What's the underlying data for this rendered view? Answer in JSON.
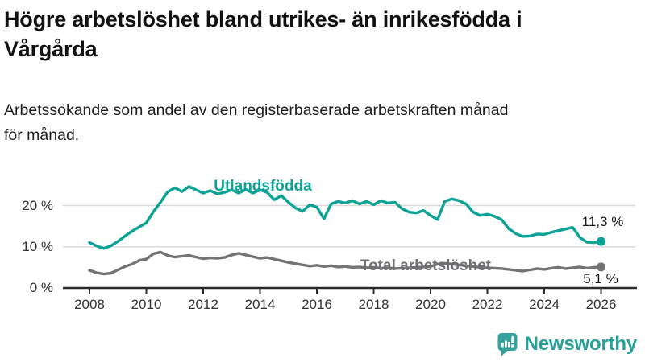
{
  "header": {
    "title_line1": "Högre arbetslöshet bland utrikes- än inrikesfödda i",
    "title_line2": "Vårgårda",
    "subtitle_line1": "Arbetssökande som andel av den registerbaserade arbetskraften månad",
    "subtitle_line2": "för månad."
  },
  "branding": {
    "name": "Newsworthy",
    "icon": "newsworthy-chart-speech-bubble",
    "text_color": "#27a099",
    "icon_color": "#35a39c"
  },
  "chart_data": {
    "type": "line",
    "title": "Arbetssökande som andel av den registerbaserade arbetskraften månad för månad",
    "x_unit": "decimal year (monthly share of labour force, %)",
    "grid": "horizontal",
    "xlim": [
      2008,
      2026.1
    ],
    "ylim": [
      0,
      26.5
    ],
    "xticks": [
      2008,
      2010,
      2012,
      2014,
      2016,
      2018,
      2020,
      2022,
      2024,
      2026
    ],
    "yticks": [
      {
        "value": 0,
        "label": "0 %"
      },
      {
        "value": 10,
        "label": "10 %"
      },
      {
        "value": 20,
        "label": "20 %"
      }
    ],
    "x": [
      2008.0,
      2008.25,
      2008.5,
      2008.75,
      2009.0,
      2009.25,
      2009.5,
      2009.75,
      2010.0,
      2010.25,
      2010.5,
      2010.75,
      2011.0,
      2011.25,
      2011.5,
      2011.75,
      2012.0,
      2012.25,
      2012.5,
      2012.75,
      2013.0,
      2013.25,
      2013.5,
      2013.75,
      2014.0,
      2014.25,
      2014.5,
      2014.75,
      2015.0,
      2015.25,
      2015.5,
      2015.75,
      2016.0,
      2016.25,
      2016.5,
      2016.75,
      2017.0,
      2017.25,
      2017.5,
      2017.75,
      2018.0,
      2018.25,
      2018.5,
      2018.75,
      2019.0,
      2019.25,
      2019.5,
      2019.75,
      2020.0,
      2020.25,
      2020.5,
      2020.75,
      2021.0,
      2021.25,
      2021.5,
      2021.75,
      2022.0,
      2022.25,
      2022.5,
      2022.75,
      2023.0,
      2023.25,
      2023.5,
      2023.75,
      2024.0,
      2024.25,
      2024.5,
      2024.75,
      2025.0,
      2025.25,
      2025.5,
      2025.75,
      2026.0
    ],
    "series": [
      {
        "name": "Utlandsfödda",
        "color": "#0aa396",
        "end_value": 11.3,
        "end_label": "11,3 %",
        "values": [
          11.0,
          10.2,
          9.6,
          10.2,
          11.3,
          12.6,
          13.8,
          14.8,
          15.8,
          18.5,
          20.8,
          23.3,
          24.3,
          23.4,
          24.6,
          23.8,
          23.0,
          23.6,
          22.8,
          23.2,
          23.8,
          23.0,
          23.9,
          23.0,
          23.8,
          23.2,
          21.4,
          22.4,
          20.8,
          19.4,
          18.6,
          20.2,
          19.6,
          16.8,
          20.4,
          21.0,
          20.6,
          21.2,
          20.4,
          21.0,
          20.2,
          21.2,
          20.6,
          20.8,
          19.2,
          18.4,
          18.2,
          18.8,
          17.6,
          16.6,
          21.0,
          21.6,
          21.2,
          20.4,
          18.4,
          17.6,
          17.9,
          17.4,
          16.6,
          14.4,
          13.2,
          12.5,
          12.6,
          13.1,
          13.0,
          13.5,
          13.9,
          14.3,
          14.7,
          12.3,
          11.1,
          11.0,
          11.3
        ]
      },
      {
        "name": "Total arbetslöshet",
        "color": "#737373",
        "end_value": 5.1,
        "end_label": "5,1 %",
        "values": [
          4.3,
          3.7,
          3.4,
          3.6,
          4.4,
          5.2,
          5.8,
          6.7,
          7.0,
          8.3,
          8.7,
          7.9,
          7.5,
          7.7,
          7.9,
          7.5,
          7.1,
          7.3,
          7.2,
          7.4,
          8.0,
          8.4,
          8.0,
          7.6,
          7.2,
          7.4,
          7.0,
          6.6,
          6.2,
          5.9,
          5.6,
          5.3,
          5.5,
          5.2,
          5.4,
          5.1,
          5.2,
          5.0,
          5.1,
          4.9,
          5.0,
          4.8,
          4.9,
          4.7,
          4.8,
          4.9,
          5.0,
          5.1,
          5.2,
          5.8,
          6.0,
          5.8,
          5.6,
          5.4,
          5.2,
          5.0,
          4.9,
          4.8,
          4.7,
          4.5,
          4.3,
          4.1,
          4.4,
          4.7,
          4.5,
          4.8,
          5.0,
          4.7,
          4.9,
          5.1,
          4.8,
          5.0,
          5.1
        ]
      }
    ]
  }
}
